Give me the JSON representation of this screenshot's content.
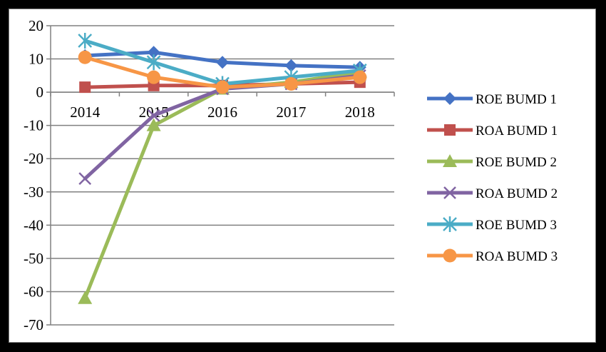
{
  "chart_data": {
    "type": "line",
    "categories": [
      "2014",
      "2015",
      "2016",
      "2017",
      "2018"
    ],
    "ylim": [
      -70,
      20
    ],
    "yticks": [
      20,
      10,
      0,
      -10,
      -20,
      -30,
      -40,
      -50,
      -60,
      -70
    ],
    "grid": true,
    "legend_position": "right",
    "series": [
      {
        "name": "ROE BUMD 1",
        "values": [
          11,
          12,
          9,
          8,
          7.5
        ],
        "color": "#4472C4",
        "marker": "diamond"
      },
      {
        "name": "ROA BUMD 1",
        "values": [
          1.5,
          2,
          2,
          2.5,
          3
        ],
        "color": "#C0504D",
        "marker": "square"
      },
      {
        "name": "ROE BUMD 2",
        "values": [
          -62,
          -10,
          1,
          3,
          6
        ],
        "color": "#9BBB59",
        "marker": "triangle"
      },
      {
        "name": "ROA BUMD 2",
        "values": [
          -26,
          -7,
          1,
          2.5,
          5
        ],
        "color": "#8064A2",
        "marker": "x"
      },
      {
        "name": "ROE BUMD 3",
        "values": [
          15.5,
          9,
          2.5,
          4.5,
          6.5
        ],
        "color": "#4BACC6",
        "marker": "star"
      },
      {
        "name": "ROA BUMD 3",
        "values": [
          10.5,
          4.5,
          1.5,
          2.5,
          4.5
        ],
        "color": "#F79646",
        "marker": "circle"
      }
    ]
  }
}
